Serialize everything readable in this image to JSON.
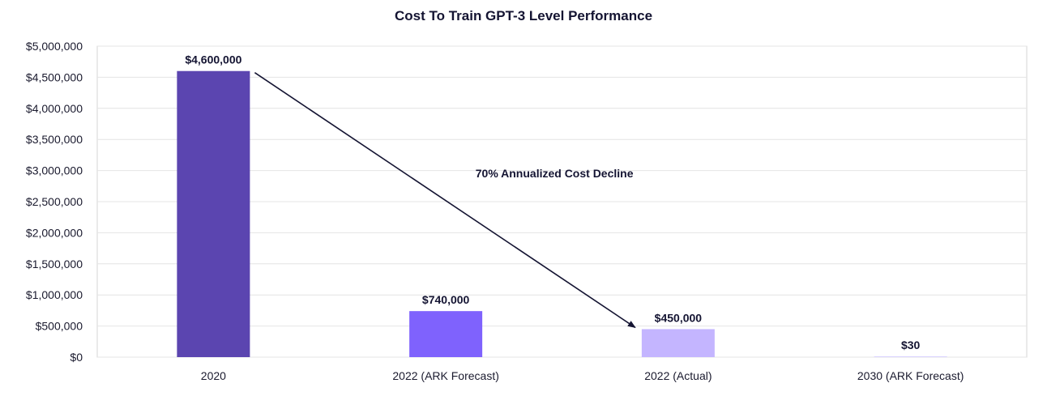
{
  "chart_data": {
    "type": "bar",
    "title": "Cost To Train GPT-3 Level Performance",
    "categories": [
      "2020",
      "2022 (ARK Forecast)",
      "2022 (Actual)",
      "2030 (ARK Forecast)"
    ],
    "values": [
      4600000,
      740000,
      450000,
      30
    ],
    "data_labels": [
      "$4,600,000",
      "$740,000",
      "$450,000",
      "$30"
    ],
    "colors": [
      "#5b45b0",
      "#7f62fd",
      "#c4b5ff",
      "#d9d2ff"
    ],
    "ylim": [
      0,
      5000000
    ],
    "yticks": [
      0,
      500000,
      1000000,
      1500000,
      2000000,
      2500000,
      3000000,
      3500000,
      4000000,
      4500000,
      5000000
    ],
    "ytick_labels": [
      "$0",
      "$500,000",
      "$1,000,000",
      "$1,500,000",
      "$2,000,000",
      "$2,500,000",
      "$3,000,000",
      "$3,500,000",
      "$4,000,000",
      "$4,500,000",
      "$5,000,000"
    ],
    "grid": true,
    "annotation": {
      "text": "70% Annualized Cost Decline",
      "from_category": "2020",
      "to_category": "2022 (Actual)"
    }
  }
}
